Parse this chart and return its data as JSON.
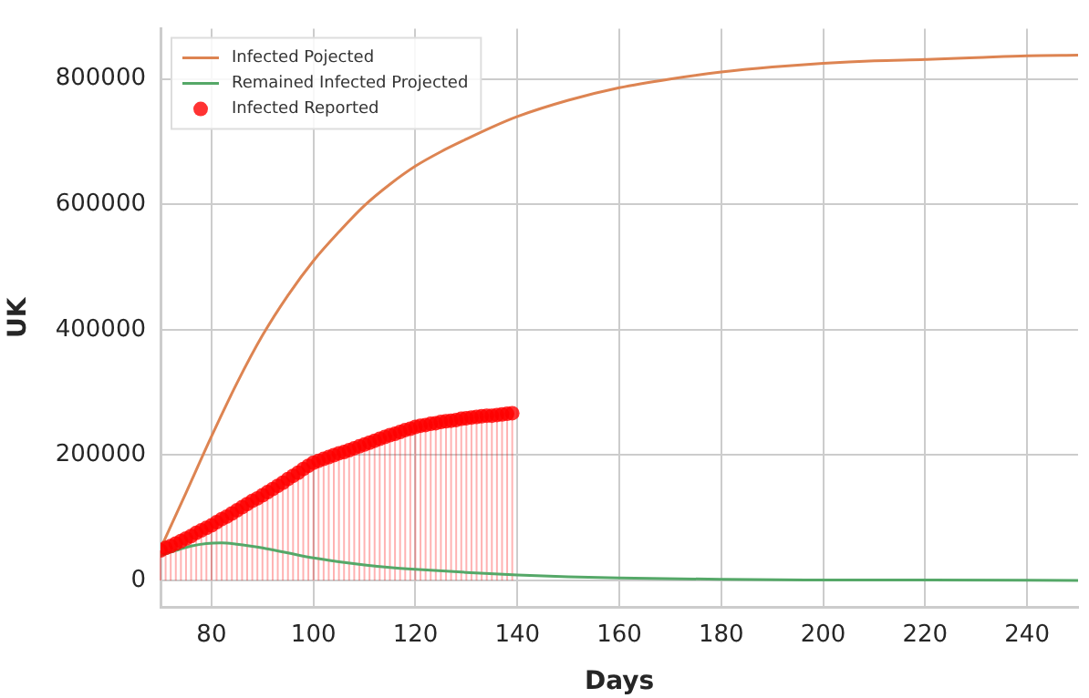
{
  "chart_data": {
    "type": "line",
    "xlabel": "Days",
    "ylabel": "UK",
    "xlim": [
      70,
      250
    ],
    "xticks": [
      80,
      100,
      120,
      140,
      160,
      180,
      200,
      220,
      240
    ],
    "ylim": [
      -42000,
      880000
    ],
    "yticks": [
      0,
      200000,
      400000,
      600000,
      800000
    ],
    "grid": true,
    "legend": "top left",
    "series": [
      {
        "name": "Infected Pojected",
        "color": "#dd8452",
        "marker": "none",
        "line_style": "solid",
        "x": [
          70,
          75,
          80,
          85,
          90,
          95,
          100,
          105,
          110,
          115,
          120,
          125,
          130,
          135,
          140,
          150,
          160,
          170,
          180,
          190,
          200,
          210,
          220,
          230,
          240,
          250
        ],
        "values": [
          51000,
          140000,
          230000,
          315000,
          391000,
          455000,
          510000,
          556000,
          598000,
          632000,
          661000,
          684000,
          704000,
          723000,
          740000,
          766000,
          786000,
          800000,
          811000,
          819000,
          825000,
          829000,
          831000,
          834000,
          837000,
          838000
        ]
      },
      {
        "name": "Remained Infected Projected",
        "color": "#55a868",
        "marker": "none",
        "line_style": "solid",
        "x": [
          70,
          73,
          76,
          79,
          82,
          85,
          90,
          95,
          100,
          105,
          110,
          115,
          120,
          130,
          140,
          150,
          160,
          180,
          200,
          220,
          250
        ],
        "values": [
          40000,
          48000,
          55000,
          59000,
          60000,
          58000,
          52000,
          44000,
          36000,
          30000,
          25000,
          21000,
          18000,
          13000,
          9000,
          6000,
          4000,
          2000,
          1000,
          1000,
          0
        ]
      },
      {
        "name": "Infected Reported",
        "type": "lollipop",
        "color": "#ff0000",
        "marker": "circle",
        "x": [
          70,
          71,
          72,
          73,
          74,
          75,
          76,
          77,
          78,
          79,
          80,
          81,
          82,
          83,
          84,
          85,
          86,
          87,
          88,
          89,
          90,
          91,
          92,
          93,
          94,
          95,
          96,
          97,
          98,
          99,
          100,
          101,
          102,
          103,
          104,
          105,
          106,
          107,
          108,
          109,
          110,
          111,
          112,
          113,
          114,
          115,
          116,
          117,
          118,
          119,
          120,
          121,
          122,
          123,
          124,
          125,
          126,
          127,
          128,
          129,
          130,
          131,
          132,
          133,
          134,
          135,
          136,
          137,
          138,
          139
        ],
        "values": [
          48000,
          52000,
          55000,
          59000,
          63000,
          67000,
          71000,
          76000,
          80000,
          84000,
          88000,
          93000,
          98000,
          102000,
          107000,
          112000,
          117000,
          122000,
          127000,
          131000,
          136000,
          141000,
          146000,
          151000,
          156000,
          162000,
          167000,
          172000,
          178000,
          183000,
          188000,
          191000,
          194000,
          197000,
          200000,
          203000,
          205000,
          208000,
          211000,
          214000,
          217000,
          220000,
          223000,
          226000,
          229000,
          232000,
          234000,
          237000,
          240000,
          242000,
          245000,
          247000,
          248000,
          250000,
          251000,
          253000,
          254000,
          255000,
          256000,
          258000,
          259000,
          260000,
          261000,
          262000,
          263000,
          263000,
          264000,
          265000,
          266000,
          267000
        ]
      }
    ]
  }
}
